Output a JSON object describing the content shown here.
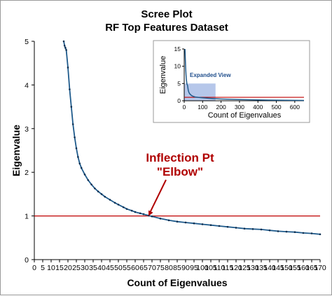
{
  "colors": {
    "curve": "#1f5b8c",
    "threshold": "#c00000",
    "annotation": "#b00000",
    "shade": "#a9bde6"
  },
  "chart_data": [
    {
      "id": "main",
      "type": "line",
      "title": "Scree Plot",
      "subtitle": "RF Top Features Dataset",
      "xlabel": "Count of Eigenvalues",
      "ylabel": "Eigenvalue",
      "xlim": [
        0,
        170
      ],
      "ylim": [
        0,
        5
      ],
      "xticks": [
        0,
        5,
        10,
        15,
        20,
        25,
        30,
        35,
        40,
        45,
        50,
        55,
        60,
        65,
        70,
        75,
        80,
        85,
        90,
        95,
        100,
        105,
        110,
        115,
        120,
        125,
        130,
        135,
        140,
        145,
        150,
        155,
        160,
        165,
        170
      ],
      "yticks": [
        0,
        1,
        2,
        3,
        4,
        5
      ],
      "grid": false,
      "series": [
        {
          "x": [
            17.5,
            18,
            18.5,
            19,
            20,
            21,
            22,
            23,
            24,
            25,
            26,
            27,
            28,
            30,
            32,
            34,
            36,
            38,
            40,
            42,
            45,
            48,
            50,
            53,
            55,
            58,
            60,
            63,
            65,
            68,
            70,
            75,
            80,
            85,
            90,
            95,
            100,
            105,
            110,
            115,
            120,
            125,
            130,
            135,
            140,
            145,
            150,
            155,
            160,
            165,
            170
          ],
          "values": [
            5.0,
            4.9,
            4.85,
            4.8,
            4.4,
            3.9,
            3.5,
            3.1,
            2.8,
            2.55,
            2.35,
            2.2,
            2.1,
            1.95,
            1.82,
            1.72,
            1.63,
            1.56,
            1.5,
            1.44,
            1.37,
            1.3,
            1.26,
            1.2,
            1.16,
            1.12,
            1.09,
            1.06,
            1.04,
            1.01,
            0.99,
            0.94,
            0.9,
            0.87,
            0.85,
            0.83,
            0.81,
            0.79,
            0.77,
            0.75,
            0.73,
            0.71,
            0.7,
            0.69,
            0.67,
            0.65,
            0.64,
            0.63,
            0.61,
            0.6,
            0.58
          ]
        }
      ],
      "reference_line": {
        "y": 1
      },
      "annotation": {
        "line1": "Inflection Pt",
        "line2": "\"Elbow\"",
        "point": [
          68,
          1.0
        ]
      }
    },
    {
      "id": "inset",
      "type": "line",
      "xlabel": "Count of Eigenvalues",
      "ylabel": "Eigenvalue",
      "xlim": [
        0,
        650
      ],
      "ylim": [
        0,
        15
      ],
      "xticks": [
        0,
        100,
        200,
        300,
        400,
        500,
        600
      ],
      "yticks": [
        0,
        5,
        10,
        15
      ],
      "series": [
        {
          "x": [
            4,
            6,
            8,
            10,
            12,
            15,
            18,
            22,
            26,
            30,
            40,
            50,
            60,
            80,
            100,
            130,
            170,
            200,
            300,
            400,
            500,
            600,
            650
          ],
          "values": [
            15,
            12,
            9.5,
            7.5,
            6,
            4.8,
            4.5,
            3,
            2.4,
            2,
            1.5,
            1.25,
            1.1,
            0.95,
            0.85,
            0.72,
            0.58,
            0.5,
            0.35,
            0.25,
            0.18,
            0.13,
            0.1
          ]
        }
      ],
      "reference_line": {
        "y": 1
      },
      "highlight": {
        "label": "Expanded View",
        "x": [
          0,
          170
        ],
        "y": [
          0,
          5
        ]
      }
    }
  ]
}
